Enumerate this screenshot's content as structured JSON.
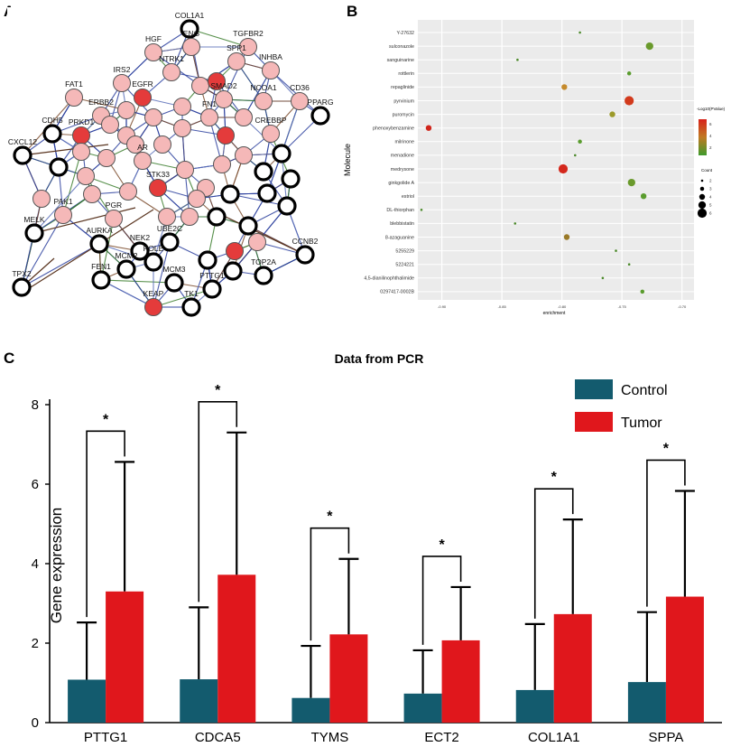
{
  "panels": {
    "a": "A",
    "b": "B",
    "c": "C"
  },
  "chart_data": [
    {
      "type": "network",
      "panel": "A",
      "nodes": [
        {
          "label": "COL1A1",
          "kind": "white"
        },
        {
          "label": "HGF",
          "kind": "pink"
        },
        {
          "label": "TGFBR2",
          "kind": "pink"
        },
        {
          "label": "ENG",
          "kind": "pink"
        },
        {
          "label": "NTRK1",
          "kind": "pink"
        },
        {
          "label": "SPP1",
          "kind": "pink"
        },
        {
          "label": "INHBA",
          "kind": "pink"
        },
        {
          "label": "IRS2",
          "kind": "pink"
        },
        {
          "label": "EGFR",
          "kind": "red"
        },
        {
          "label": "FAT1",
          "kind": "pink"
        },
        {
          "label": "ERBB2",
          "kind": "pink"
        },
        {
          "label": "PRKD1",
          "kind": "red"
        },
        {
          "label": "NCOA1",
          "kind": "pink"
        },
        {
          "label": "SMAD2",
          "kind": "pink"
        },
        {
          "label": "FN1",
          "kind": "pink"
        },
        {
          "label": "CD36",
          "kind": "pink"
        },
        {
          "label": "PPARG",
          "kind": "white"
        },
        {
          "label": "CDH5",
          "kind": "white"
        },
        {
          "label": "CREBBP",
          "kind": "pink"
        },
        {
          "label": "CXCL12",
          "kind": "white"
        },
        {
          "label": "AR",
          "kind": "pink"
        },
        {
          "label": "STK33",
          "kind": "red"
        },
        {
          "label": "PAK1",
          "kind": "pink"
        },
        {
          "label": "PGR",
          "kind": "pink"
        },
        {
          "label": "UBE2C",
          "kind": "white"
        },
        {
          "label": "CCNB2",
          "kind": "white"
        },
        {
          "label": "MELK",
          "kind": "white"
        },
        {
          "label": "AURKA",
          "kind": "white"
        },
        {
          "label": "NEK2",
          "kind": "white"
        },
        {
          "label": "FEN1",
          "kind": "white"
        },
        {
          "label": "MCM2",
          "kind": "white"
        },
        {
          "label": "POLE",
          "kind": "white"
        },
        {
          "label": "PTTG1",
          "kind": "white"
        },
        {
          "label": "TOP2A",
          "kind": "white"
        },
        {
          "label": "TPX2",
          "kind": "white"
        },
        {
          "label": "MCM3",
          "kind": "white"
        },
        {
          "label": "KEAP",
          "kind": "red"
        },
        {
          "label": "TK1",
          "kind": "white"
        }
      ]
    },
    {
      "type": "scatter",
      "panel": "B",
      "xlabel": "enrichment",
      "ylabel": "Molecule",
      "xticks": [
        "-0.90",
        "-0.85",
        "-0.80",
        "-0.75",
        "-0.70"
      ],
      "legend_color_title": "-Log10(PValue)",
      "legend_color_ticks": [
        "6",
        "4",
        "2"
      ],
      "legend_size_title": "Count",
      "legend_size_ticks": [
        "2",
        "3",
        "4",
        "5",
        "6"
      ],
      "xlim": [
        -0.92,
        -0.69
      ],
      "points": [
        {
          "label": "Y-27632",
          "x": -0.785,
          "count": 2,
          "color": "#4c8a2b"
        },
        {
          "label": "sulconazole",
          "x": -0.727,
          "count": 5,
          "color": "#6a9a2c"
        },
        {
          "label": "sanguinarine",
          "x": -0.837,
          "count": 2,
          "color": "#4c8a2b"
        },
        {
          "label": "rottlerin",
          "x": -0.744,
          "count": 3,
          "color": "#5a9c2e"
        },
        {
          "label": "repaglinide",
          "x": -0.798,
          "count": 4,
          "color": "#c58a2c"
        },
        {
          "label": "pyrvinium",
          "x": -0.744,
          "count": 6,
          "color": "#d23a1c"
        },
        {
          "label": "puromycin",
          "x": -0.758,
          "count": 4,
          "color": "#9c9a2a"
        },
        {
          "label": "phenoxybenzamine",
          "x": -0.911,
          "count": 4,
          "color": "#d0261c"
        },
        {
          "label": "milrinone",
          "x": -0.785,
          "count": 3,
          "color": "#5a9c2e"
        },
        {
          "label": "menadione",
          "x": -0.789,
          "count": 2,
          "color": "#4c8a2b"
        },
        {
          "label": "medrysone",
          "x": -0.799,
          "count": 6,
          "color": "#d4281c"
        },
        {
          "label": "ginkgolide A",
          "x": -0.742,
          "count": 5,
          "color": "#6a9a2c"
        },
        {
          "label": "estriol",
          "x": -0.732,
          "count": 4,
          "color": "#5a9c2e"
        },
        {
          "label": "DL-thiorphan",
          "x": -0.917,
          "count": 2,
          "color": "#4c8a2b"
        },
        {
          "label": "blebbistatin",
          "x": -0.839,
          "count": 2,
          "color": "#4c8a2b"
        },
        {
          "label": "8-azaguanine",
          "x": -0.796,
          "count": 4,
          "color": "#9a7a28"
        },
        {
          "label": "5255229",
          "x": -0.755,
          "count": 2,
          "color": "#4c8a2b"
        },
        {
          "label": "5224221",
          "x": -0.744,
          "count": 2,
          "color": "#4c8a2b"
        },
        {
          "label": "4,5-dianilinophthalimide",
          "x": -0.766,
          "count": 2,
          "color": "#4c8a2b"
        },
        {
          "label": "0297417-0002B",
          "x": -0.733,
          "count": 3,
          "color": "#5a9c2e"
        }
      ]
    },
    {
      "type": "bar",
      "panel": "C",
      "title": "Data from PCR",
      "ylabel": "Gene expression",
      "xlabel": "",
      "ylim": [
        0,
        8
      ],
      "yticks": [
        0,
        2,
        4,
        6,
        8
      ],
      "categories": [
        "PTTG1",
        "CDCA5",
        "TYMS",
        "ECT2",
        "COL1A1",
        "SPPA"
      ],
      "series": [
        {
          "name": "Control",
          "color": "#135b6e",
          "values": [
            1.08,
            1.09,
            0.62,
            0.73,
            0.82,
            1.02
          ],
          "errors": [
            1.44,
            1.81,
            1.31,
            1.09,
            1.66,
            1.76
          ]
        },
        {
          "name": "Tumor",
          "color": "#e0171c",
          "values": [
            3.3,
            3.72,
            2.22,
            2.07,
            2.73,
            3.17
          ],
          "errors": [
            3.26,
            3.58,
            1.9,
            1.34,
            2.38,
            2.66
          ]
        }
      ],
      "significance": [
        "*",
        "*",
        "*",
        "*",
        "*",
        "*"
      ]
    }
  ]
}
